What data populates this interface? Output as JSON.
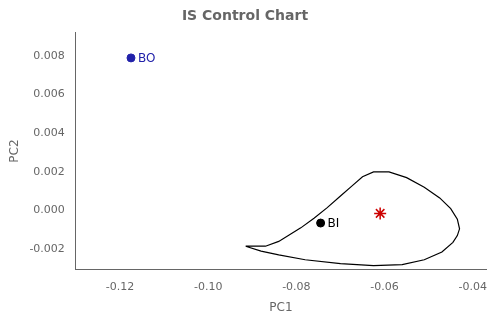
{
  "chart_data": {
    "type": "scatter",
    "title": "IS Control Chart",
    "x_label": "PC1",
    "y_label": "PC2",
    "xlim": [
      -0.13,
      -0.037
    ],
    "ylim": [
      -0.00305,
      0.0092
    ],
    "xticks": [
      -0.12,
      {
        "value": -0.1,
        "label": "-0.10"
      },
      -0.08,
      -0.06,
      -0.04
    ],
    "yticks": [
      -0.002,
      {
        "value": 0,
        "label": "0.000"
      },
      0.002,
      0.004,
      0.006,
      0.008
    ],
    "grid": false,
    "series": [
      {
        "type": "line",
        "line_style": "solid",
        "marker": "none",
        "color": "#000000",
        "x": [
          -0.0915,
          -0.087,
          -0.084,
          -0.079,
          -0.076,
          -0.073,
          -0.07,
          -0.0675,
          -0.065,
          -0.0625,
          -0.059,
          -0.055,
          -0.051,
          -0.0475,
          -0.045,
          -0.0435,
          -0.043,
          -0.0435,
          -0.0445,
          -0.047,
          -0.051,
          -0.056,
          -0.0625,
          -0.07,
          -0.078,
          -0.084,
          -0.088,
          -0.0915
        ],
        "values": [
          -0.00185,
          -0.00185,
          -0.0016,
          -0.0009,
          -0.0004,
          0.00015,
          0.00075,
          0.00125,
          0.00175,
          0.002,
          0.002,
          0.0017,
          0.0012,
          0.00065,
          0.0001,
          -0.00045,
          -0.00095,
          -0.0013,
          -0.00165,
          -0.00215,
          -0.00255,
          -0.0028,
          -0.00285,
          -0.00275,
          -0.00255,
          -0.0023,
          -0.0021,
          -0.00185
        ]
      },
      {
        "type": "scatter",
        "marker": "circle",
        "color": "#2222AA",
        "x": [
          -0.1175
        ],
        "values": [
          0.0079
        ]
      },
      {
        "type": "scatter",
        "marker": "circle",
        "color": "#000000",
        "x": [
          -0.0745
        ],
        "values": [
          -0.00065
        ]
      },
      {
        "type": "scatter",
        "marker": "star",
        "color": "#CC0000",
        "x": [
          -0.061
        ],
        "values": [
          -0.00015
        ]
      }
    ],
    "annotations": [
      {
        "text": "BO",
        "x": -0.1175,
        "y": 0.0079,
        "color": "#2222AA"
      },
      {
        "text": "BI",
        "x": -0.0745,
        "y": -0.00065,
        "color": "#000000"
      }
    ]
  }
}
